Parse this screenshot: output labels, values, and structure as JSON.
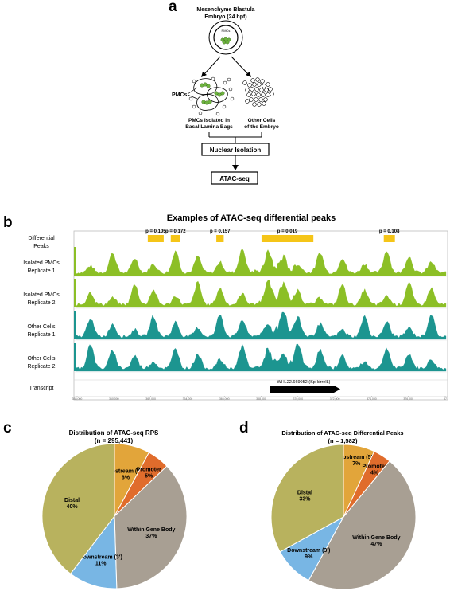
{
  "panel_a": {
    "letter": "a",
    "embryo_line1": "Mesenchyme Blastula",
    "embryo_line2": "Embryo (24 hpf)",
    "pmcs_inner": "PMCs",
    "pmcs_label": "PMCs",
    "isolated_line1": "PMCs Isolated in",
    "isolated_line2": "Basal Lamina Bags",
    "other_line1": "Other Cells",
    "other_line2": "of the Embryo",
    "step1": "Nuclear Isolation",
    "step2": "ATAC-seq"
  },
  "panel_b": {
    "letter": "b",
    "title": "Examples of ATAC-seq differential peaks",
    "diff_line1": "Differential",
    "diff_line2": "Peaks",
    "tracks": [
      {
        "line1": "Isolated PMCs",
        "line2": "Replicate 1",
        "color": "#8cbf26"
      },
      {
        "line1": "Isolated PMCs",
        "line2": "Replicate 2",
        "color": "#8cbf26"
      },
      {
        "line1": "Other Cells",
        "line2": "Replicate 1",
        "color": "#1c9590"
      },
      {
        "line1": "Other Cells",
        "line2": "Replicate 2",
        "color": "#1c9590"
      }
    ],
    "transcript_label": "Transcript",
    "gene_label": "WHL22.669052 (Sp-kirrelL)",
    "peaks": [
      {
        "p": "p = 0.105",
        "start": 0.195,
        "end": 0.238
      },
      {
        "p": "p = 0.172",
        "start": 0.257,
        "end": 0.283
      },
      {
        "p": "p = 0.157",
        "start": 0.38,
        "end": 0.4
      },
      {
        "p": "p = 0.019",
        "start": 0.502,
        "end": 0.642
      },
      {
        "p": "p = 0.108",
        "start": 0.832,
        "end": 0.862
      }
    ],
    "axis_ticks": [
      "358,000",
      "360,000",
      "362,000",
      "364,000",
      "366,000",
      "368,000",
      "370,000",
      "372,000",
      "374,000",
      "376,000",
      "37"
    ],
    "peak_color": "#f5c518"
  },
  "panel_c": {
    "letter": "c",
    "title": "Distribution of ATAC-seq RPS",
    "subtitle": "(n = 295,441)",
    "chart_data": {
      "type": "pie",
      "title": "Distribution of ATAC-seq RPS",
      "subtitle": "(n = 295,441)",
      "slices": [
        {
          "name": "Upstream (5')",
          "value": 8,
          "label": "8%",
          "color": "#e2a53a"
        },
        {
          "name": "Promoter",
          "value": 5,
          "label": "5%",
          "color": "#e06c2c"
        },
        {
          "name": "Within Gene Body",
          "value": 37,
          "label": "37%",
          "color": "#a89f93"
        },
        {
          "name": "Downstream (3')",
          "value": 11,
          "label": "11%",
          "color": "#78b6e4"
        },
        {
          "name": "Distal",
          "value": 40,
          "label": "40%",
          "color": "#b8b25e"
        }
      ]
    }
  },
  "panel_d": {
    "letter": "d",
    "title": "Distribution of ATAC-seq Differential Peaks",
    "subtitle": "(n = 1,582)",
    "chart_data": {
      "type": "pie",
      "title": "Distribution of ATAC-seq Differential Peaks",
      "subtitle": "(n = 1,582)",
      "slices": [
        {
          "name": "Upstream (5')",
          "value": 7,
          "label": "7%",
          "color": "#e2a53a"
        },
        {
          "name": "Promoter",
          "value": 4,
          "label": "4%",
          "color": "#e06c2c"
        },
        {
          "name": "Within Gene Body",
          "value": 47,
          "label": "47%",
          "color": "#a89f93"
        },
        {
          "name": "Downstream (3')",
          "value": 9,
          "label": "9%",
          "color": "#78b6e4"
        },
        {
          "name": "Distal",
          "value": 33,
          "label": "33%",
          "color": "#b8b25e"
        }
      ]
    }
  }
}
